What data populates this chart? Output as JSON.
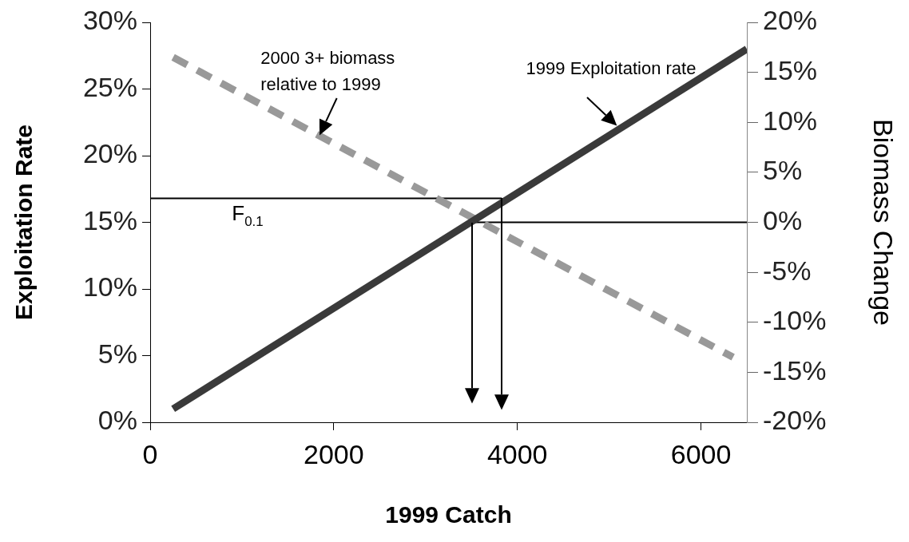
{
  "chart_data": {
    "type": "line",
    "xlabel": "1999 Catch",
    "ylabel": "Exploitation Rate",
    "y2label": "Biomass Change",
    "xlim": [
      0,
      6500
    ],
    "xticks": [
      0,
      2000,
      4000,
      6000
    ],
    "ylim": [
      0,
      30
    ],
    "yticks": [
      {
        "value": 0,
        "label": "0%"
      },
      {
        "value": 5,
        "label": "5%"
      },
      {
        "value": 10,
        "label": "10%"
      },
      {
        "value": 15,
        "label": "15%"
      },
      {
        "value": 20,
        "label": "20%"
      },
      {
        "value": 25,
        "label": "25%"
      },
      {
        "value": 30,
        "label": "30%"
      }
    ],
    "y2lim": [
      -20,
      20
    ],
    "y2ticks": [
      {
        "value": -20,
        "label": "-20%"
      },
      {
        "value": -15,
        "label": "-15%"
      },
      {
        "value": -10,
        "label": "-10%"
      },
      {
        "value": -5,
        "label": "-5%"
      },
      {
        "value": 0,
        "label": "0%"
      },
      {
        "value": 5,
        "label": "5%"
      },
      {
        "value": 10,
        "label": "10%"
      },
      {
        "value": 15,
        "label": "15%"
      },
      {
        "value": 20,
        "label": "20%"
      }
    ],
    "grid": false,
    "marker": "none",
    "series": [
      {
        "name": "1999 Exploitation rate",
        "color": "#3a3a3a",
        "x": [
          250,
          6500
        ],
        "values": [
          1,
          28
        ],
        "line_style": "solid"
      },
      {
        "name": "2000 3+ biomass relative to 1999",
        "color": "#999999",
        "axis": "y2",
        "x": [
          250,
          6350
        ],
        "values": [
          16.5,
          -13.5
        ],
        "line_style": "dashed"
      },
      {
        "color": "#000000",
        "x": [
          0,
          3830
        ],
        "values": [
          16.8,
          16.8
        ],
        "line_style": "solid"
      },
      {
        "color": "#000000",
        "axis": "y2",
        "x": [
          3510,
          6500
        ],
        "values": [
          0,
          0
        ],
        "line_style": "solid"
      }
    ],
    "annotations": [
      {
        "text": "F$_{0.1}$",
        "x": 890,
        "y": 16.8
      }
    ]
  }
}
